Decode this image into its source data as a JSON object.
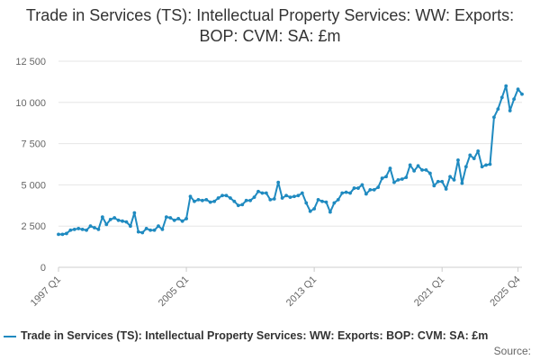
{
  "chart_data": {
    "type": "line",
    "title": "Trade in Services (TS): Intellectual Property Services: WW: Exports: BOP: CVM: SA: £m",
    "xlabel": "",
    "ylabel": "",
    "ylim": [
      0,
      12500
    ],
    "yticks": [
      0,
      2500,
      5000,
      7500,
      10000,
      12500
    ],
    "ytick_labels": [
      "0",
      "2 500",
      "5 000",
      "7 500",
      "10 000",
      "12 500"
    ],
    "xticks": [
      {
        "label": "1997 Q1",
        "index": 0
      },
      {
        "label": "2005 Q1",
        "index": 32
      },
      {
        "label": "2013 Q1",
        "index": 64
      },
      {
        "label": "2021 Q1",
        "index": 96
      },
      {
        "label": "2025 Q4",
        "index": 115
      }
    ],
    "series": [
      {
        "name": "Trade in Services (TS): Intellectual Property Services: WW: Exports: BOP: CVM: SA: £m",
        "color": "#1f8ac0",
        "values": [
          2000,
          2000,
          2050,
          2250,
          2300,
          2350,
          2300,
          2250,
          2500,
          2400,
          2300,
          3050,
          2600,
          2900,
          3000,
          2850,
          2800,
          2750,
          2500,
          3300,
          2150,
          2100,
          2350,
          2250,
          2250,
          2500,
          2300,
          3050,
          3000,
          2850,
          2950,
          2800,
          2950,
          4300,
          4000,
          4100,
          4050,
          4100,
          3950,
          4000,
          4200,
          4350,
          4350,
          4200,
          4000,
          3750,
          3800,
          4050,
          4050,
          4250,
          4600,
          4500,
          4500,
          4100,
          4150,
          5150,
          4200,
          4350,
          4250,
          4300,
          4350,
          4500,
          3900,
          3400,
          3550,
          4100,
          4000,
          3950,
          3350,
          3900,
          4100,
          4500,
          4550,
          4500,
          4800,
          4800,
          5000,
          4450,
          4700,
          4700,
          4850,
          5400,
          5500,
          6000,
          5150,
          5300,
          5350,
          5450,
          6200,
          5850,
          6150,
          5900,
          5900,
          5700,
          4950,
          5200,
          5200,
          4750,
          5500,
          5300,
          6500,
          5100,
          6100,
          6800,
          6600,
          7050,
          6100,
          6200,
          6250,
          9100,
          9600,
          10300,
          11000,
          9500,
          10200,
          10800,
          10500
        ]
      }
    ]
  },
  "legend": {
    "label": "Trade in Services (TS): Intellectual Property Services: WW: Exports: BOP: CVM: SA: £m"
  },
  "source": {
    "label": "Source:"
  }
}
